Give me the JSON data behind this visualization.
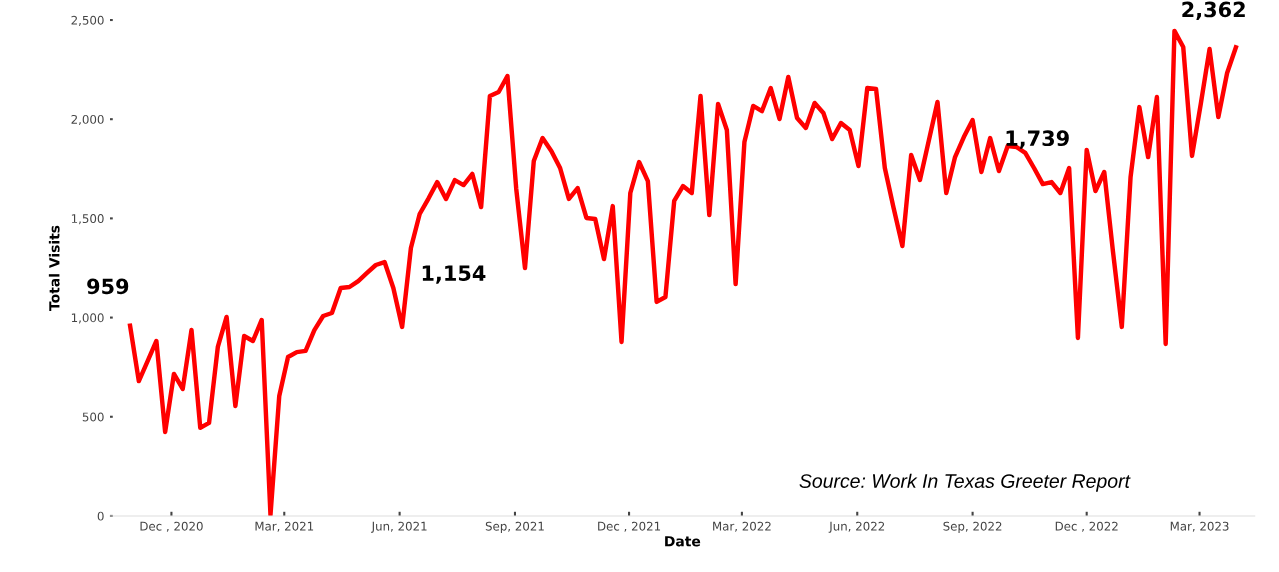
{
  "chart_data": {
    "type": "line",
    "xlabel": "Date",
    "ylabel": "Total Visits",
    "x": [
      "2020-10-29",
      "2020-11-05",
      "2020-11-12",
      "2020-11-19",
      "2020-11-26",
      "2020-12-03",
      "2020-12-10",
      "2020-12-17",
      "2020-12-24",
      "2020-12-31",
      "2021-01-07",
      "2021-01-14",
      "2021-01-21",
      "2021-01-28",
      "2021-02-04",
      "2021-02-11",
      "2021-02-18",
      "2021-02-25",
      "2021-03-04",
      "2021-03-11",
      "2021-03-18",
      "2021-03-25",
      "2021-04-01",
      "2021-04-08",
      "2021-04-15",
      "2021-04-22",
      "2021-04-29",
      "2021-05-06",
      "2021-05-13",
      "2021-05-20",
      "2021-05-27",
      "2021-06-03",
      "2021-06-10",
      "2021-06-17",
      "2021-06-24",
      "2021-07-01",
      "2021-07-08",
      "2021-07-15",
      "2021-07-22",
      "2021-07-29",
      "2021-08-05",
      "2021-08-12",
      "2021-08-19",
      "2021-08-26",
      "2021-09-02",
      "2021-09-09",
      "2021-09-16",
      "2021-09-23",
      "2021-09-30",
      "2021-10-07",
      "2021-10-14",
      "2021-10-21",
      "2021-10-28",
      "2021-11-04",
      "2021-11-11",
      "2021-11-18",
      "2021-11-25",
      "2021-12-02",
      "2021-12-09",
      "2021-12-16",
      "2021-12-23",
      "2021-12-30",
      "2022-01-06",
      "2022-01-13",
      "2022-01-20",
      "2022-01-27",
      "2022-02-03",
      "2022-02-10",
      "2022-02-17",
      "2022-02-24",
      "2022-03-03",
      "2022-03-10",
      "2022-03-17",
      "2022-03-24",
      "2022-03-31",
      "2022-04-07",
      "2022-04-14",
      "2022-04-21",
      "2022-04-28",
      "2022-05-05",
      "2022-05-12",
      "2022-05-19",
      "2022-05-26",
      "2022-06-02",
      "2022-06-09",
      "2022-06-16",
      "2022-06-23",
      "2022-06-30",
      "2022-07-07",
      "2022-07-14",
      "2022-07-21",
      "2022-07-28",
      "2022-08-04",
      "2022-08-11",
      "2022-08-18",
      "2022-08-25",
      "2022-09-01",
      "2022-09-08",
      "2022-09-15",
      "2022-09-22",
      "2022-09-29",
      "2022-10-06",
      "2022-10-13",
      "2022-10-20",
      "2022-10-27",
      "2022-11-03",
      "2022-11-10",
      "2022-11-17",
      "2022-11-24",
      "2022-12-01",
      "2022-12-08",
      "2022-12-15",
      "2022-12-22",
      "2022-12-29",
      "2023-01-05",
      "2023-01-12",
      "2023-01-19",
      "2023-01-26",
      "2023-02-02",
      "2023-02-09",
      "2023-02-16",
      "2023-02-23",
      "2023-03-02",
      "2023-03-09",
      "2023-03-16",
      "2023-03-23",
      "2023-03-30"
    ],
    "series": [
      {
        "color": "#ff0000",
        "values": [
          959,
          680,
          780,
          882,
          423,
          716,
          640,
          937,
          444,
          469,
          852,
          1003,
          554,
          907,
          882,
          988,
          5,
          605,
          801,
          826,
          832,
          937,
          1008,
          1023,
          1149,
          1154,
          1184,
          1225,
          1265,
          1280,
          1149,
          953,
          1351,
          1522,
          1600,
          1683,
          1598,
          1693,
          1668,
          1724,
          1557,
          2117,
          2137,
          2218,
          1650,
          1250,
          1789,
          1905,
          1840,
          1754,
          1598,
          1653,
          1502,
          1497,
          1295,
          1562,
          877,
          1628,
          1784,
          1688,
          1079,
          1104,
          1588,
          1663,
          1628,
          2117,
          1517,
          2077,
          1946,
          1169,
          1885,
          2067,
          2041,
          2157,
          2001,
          2213,
          2006,
          1956,
          2082,
          2031,
          1900,
          1981,
          1946,
          1764,
          2157,
          2152,
          1754,
          1552,
          1361,
          1820,
          1694,
          1890,
          2087,
          1628,
          1809,
          1910,
          1996,
          1734,
          1905,
          1739,
          1865,
          1860,
          1830,
          1754,
          1673,
          1683,
          1628,
          1754,
          897,
          1845,
          1638,
          1734,
          1331,
          953,
          1709,
          2061,
          1809,
          2112,
          867,
          2445,
          2364,
          1815,
          2077,
          2354,
          2011,
          2233,
          2362
        ]
      }
    ],
    "xticks": [
      {
        "value": "2020-12-01",
        "label": "Dec , 2020"
      },
      {
        "value": "2021-03-01",
        "label": "Mar, 2021"
      },
      {
        "value": "2021-06-01",
        "label": "Jun, 2021"
      },
      {
        "value": "2021-09-01",
        "label": "Sep, 2021"
      },
      {
        "value": "2021-12-01",
        "label": "Dec , 2021"
      },
      {
        "value": "2022-03-01",
        "label": "Mar, 2022"
      },
      {
        "value": "2022-06-01",
        "label": "Jun, 2022"
      },
      {
        "value": "2022-09-01",
        "label": "Sep, 2022"
      },
      {
        "value": "2022-12-01",
        "label": "Dec , 2022"
      },
      {
        "value": "2023-03-01",
        "label": "Mar, 2023"
      }
    ],
    "xlim": [
      "2020-10-13",
      "2023-04-14"
    ],
    "ylim": [
      0,
      2500
    ],
    "yticks": [
      {
        "value": 0,
        "label": "0"
      },
      {
        "value": 500,
        "label": "500"
      },
      {
        "value": 1000,
        "label": "1,000"
      },
      {
        "value": 1500,
        "label": "1,500"
      },
      {
        "value": 2000,
        "label": "2,000"
      },
      {
        "value": 2500,
        "label": "2,500"
      }
    ],
    "grid": false,
    "legend": false,
    "marker": "none",
    "line_style": "solid",
    "annotations": [
      {
        "text": "959",
        "x": "2020-10-29",
        "y": 959
      },
      "1,154",
      "1,739",
      {
        "text": "2,362",
        "x": "2023-03-30",
        "y": 2362
      },
      "Source: Work In Texas Greeter Report"
    ]
  }
}
